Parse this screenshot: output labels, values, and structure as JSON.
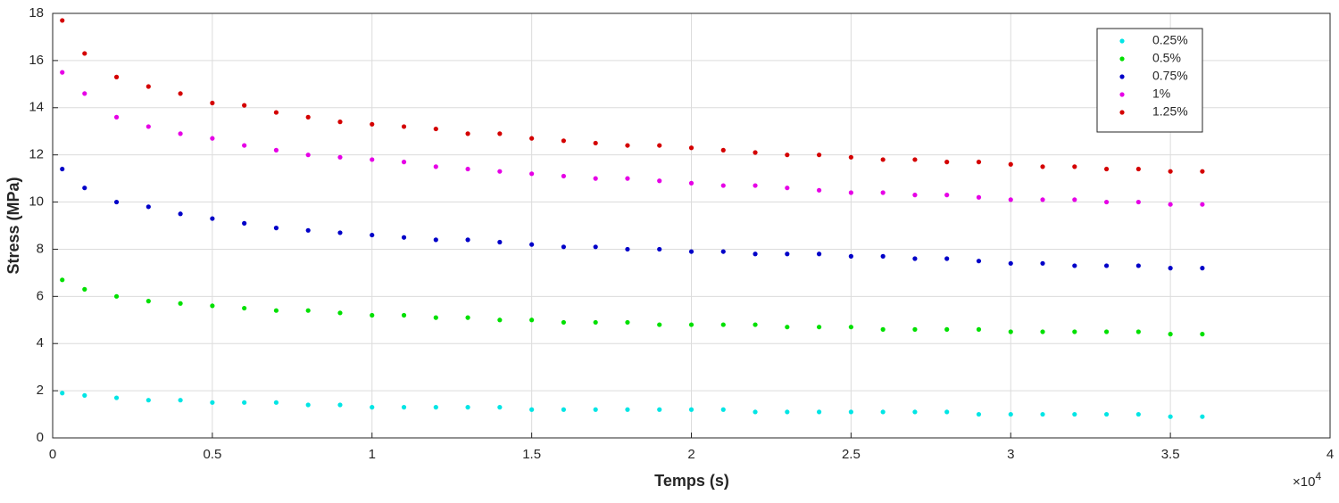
{
  "chart_data": {
    "type": "scatter",
    "x_label": "Temps (s)",
    "y_label": "Stress (MPa)",
    "x_exponent_base": "×10",
    "x_exponent": "4",
    "x": [
      0.03,
      0.1,
      0.2,
      0.3,
      0.4,
      0.5,
      0.6,
      0.7,
      0.8,
      0.9,
      1.0,
      1.1,
      1.2,
      1.3,
      1.4,
      1.5,
      1.6,
      1.7,
      1.8,
      1.9,
      2.0,
      2.1,
      2.2,
      2.3,
      2.4,
      2.5,
      2.6,
      2.7,
      2.8,
      2.9,
      3.0,
      3.1,
      3.2,
      3.3,
      3.4,
      3.5,
      3.6
    ],
    "series": [
      {
        "name": "0.25%",
        "color": "#00e5e5",
        "values": [
          1.9,
          1.8,
          1.7,
          1.6,
          1.6,
          1.5,
          1.5,
          1.5,
          1.4,
          1.4,
          1.3,
          1.3,
          1.3,
          1.3,
          1.3,
          1.2,
          1.2,
          1.2,
          1.2,
          1.2,
          1.2,
          1.2,
          1.1,
          1.1,
          1.1,
          1.1,
          1.1,
          1.1,
          1.1,
          1.0,
          1.0,
          1.0,
          1.0,
          1.0,
          1.0,
          0.9,
          0.9
        ]
      },
      {
        "name": "0.5%",
        "color": "#00e000",
        "values": [
          6.7,
          6.3,
          6.0,
          5.8,
          5.7,
          5.6,
          5.5,
          5.4,
          5.4,
          5.3,
          5.2,
          5.2,
          5.1,
          5.1,
          5.0,
          5.0,
          4.9,
          4.9,
          4.9,
          4.8,
          4.8,
          4.8,
          4.8,
          4.7,
          4.7,
          4.7,
          4.6,
          4.6,
          4.6,
          4.6,
          4.5,
          4.5,
          4.5,
          4.5,
          4.5,
          4.4,
          4.4
        ]
      },
      {
        "name": "0.75%",
        "color": "#0000c8",
        "values": [
          11.4,
          10.6,
          10.0,
          9.8,
          9.5,
          9.3,
          9.1,
          8.9,
          8.8,
          8.7,
          8.6,
          8.5,
          8.4,
          8.4,
          8.3,
          8.2,
          8.1,
          8.1,
          8.0,
          8.0,
          7.9,
          7.9,
          7.8,
          7.8,
          7.8,
          7.7,
          7.7,
          7.6,
          7.6,
          7.5,
          7.4,
          7.4,
          7.3,
          7.3,
          7.3,
          7.2,
          7.2
        ]
      },
      {
        "name": "1%",
        "color": "#e600e6",
        "values": [
          15.5,
          14.6,
          13.6,
          13.2,
          12.9,
          12.7,
          12.4,
          12.2,
          12.0,
          11.9,
          11.8,
          11.7,
          11.5,
          11.4,
          11.3,
          11.2,
          11.1,
          11.0,
          11.0,
          10.9,
          10.8,
          10.7,
          10.7,
          10.6,
          10.5,
          10.4,
          10.4,
          10.3,
          10.3,
          10.2,
          10.1,
          10.1,
          10.1,
          10.0,
          10.0,
          9.9,
          9.9
        ]
      },
      {
        "name": "1.25%",
        "color": "#d40000",
        "values": [
          17.7,
          16.3,
          15.3,
          14.9,
          14.6,
          14.2,
          14.1,
          13.8,
          13.6,
          13.4,
          13.3,
          13.2,
          13.1,
          12.9,
          12.9,
          12.7,
          12.6,
          12.5,
          12.4,
          12.4,
          12.3,
          12.2,
          12.1,
          12.0,
          12.0,
          11.9,
          11.8,
          11.8,
          11.7,
          11.7,
          11.6,
          11.5,
          11.5,
          11.4,
          11.4,
          11.3,
          11.3
        ]
      }
    ],
    "xlim": [
      0,
      4
    ],
    "xticks": [
      0,
      0.5,
      1,
      1.5,
      2,
      2.5,
      3,
      3.5,
      4
    ],
    "ylim": [
      0,
      18
    ],
    "yticks": [
      0,
      2,
      4,
      6,
      8,
      10,
      12,
      14,
      16,
      18
    ],
    "grid": true,
    "legend": "top-right"
  }
}
